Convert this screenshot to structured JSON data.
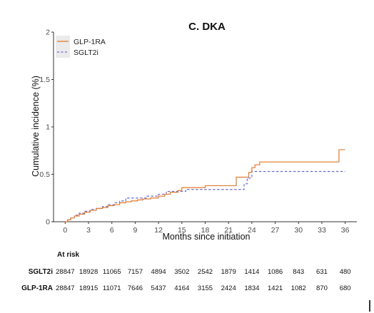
{
  "chart_data": {
    "type": "line",
    "title": "C. DKA",
    "xlabel": "Months since initiation",
    "ylabel": "Cumulative incidence (%)",
    "xlim": [
      -1.5,
      37.5
    ],
    "ylim": [
      0,
      2
    ],
    "x_ticks": [
      0,
      3,
      6,
      9,
      12,
      15,
      18,
      21,
      24,
      27,
      30,
      33,
      36
    ],
    "y_ticks": [
      0,
      0.5,
      1,
      1.5,
      2
    ],
    "y_tick_labels": [
      "0",
      "0.5",
      "1",
      "1.5",
      "2"
    ],
    "grid": false,
    "legend_position": "top-left",
    "series": [
      {
        "name": "GLP-1RA",
        "color": "#e07a2e",
        "line_style": "solid",
        "step": true,
        "x": [
          0,
          0.3,
          0.7,
          1.2,
          1.8,
          2.5,
          3.2,
          4.0,
          4.8,
          5.5,
          6.3,
          7.0,
          7.8,
          8.5,
          9.3,
          10.0,
          11.0,
          12.0,
          12.8,
          13.5,
          14.5,
          15.0,
          17.0,
          18.0,
          20.0,
          21.5,
          22.0,
          23.2,
          23.6,
          24.0,
          24.4,
          25.0,
          27.0,
          30.0,
          33.0,
          35.2,
          36.0
        ],
        "y": [
          0.0,
          0.02,
          0.04,
          0.06,
          0.08,
          0.1,
          0.12,
          0.14,
          0.15,
          0.17,
          0.18,
          0.2,
          0.21,
          0.22,
          0.23,
          0.24,
          0.25,
          0.27,
          0.29,
          0.31,
          0.33,
          0.36,
          0.36,
          0.38,
          0.38,
          0.38,
          0.47,
          0.47,
          0.52,
          0.57,
          0.6,
          0.63,
          0.63,
          0.63,
          0.63,
          0.76,
          0.76
        ]
      },
      {
        "name": "SGLT2i",
        "color": "#6b6bcf",
        "line_style": "dashed",
        "step": true,
        "x": [
          0,
          0.3,
          0.7,
          1.2,
          1.8,
          2.5,
          3.2,
          4.0,
          4.8,
          5.5,
          6.3,
          7.0,
          7.8,
          9.0,
          10.5,
          12.0,
          13.0,
          14.5,
          15.5,
          17.5,
          18.5,
          21.0,
          22.5,
          23.0,
          23.4,
          24.0,
          27.0,
          30.0,
          33.0,
          36.0
        ],
        "y": [
          0.0,
          0.02,
          0.04,
          0.07,
          0.09,
          0.11,
          0.13,
          0.14,
          0.16,
          0.18,
          0.2,
          0.22,
          0.25,
          0.25,
          0.27,
          0.29,
          0.32,
          0.32,
          0.34,
          0.34,
          0.34,
          0.34,
          0.34,
          0.4,
          0.46,
          0.53,
          0.53,
          0.53,
          0.53,
          0.53
        ]
      }
    ],
    "risk_table": {
      "header": "At risk",
      "rows": [
        {
          "label": "SGLT2i",
          "values": [
            "28847",
            "18928",
            "11065",
            "7157",
            "4894",
            "3502",
            "2542",
            "1879",
            "1414",
            "1086",
            "843",
            "631",
            "480"
          ]
        },
        {
          "label": "GLP-1RA",
          "values": [
            "28847",
            "18915",
            "11071",
            "7646",
            "5437",
            "4164",
            "3155",
            "2424",
            "1834",
            "1421",
            "1082",
            "870",
            "680"
          ]
        }
      ]
    }
  }
}
